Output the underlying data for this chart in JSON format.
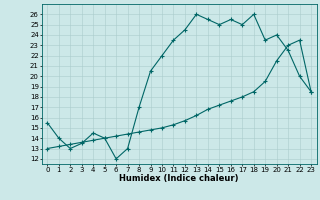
{
  "xlabel": "Humidex (Indice chaleur)",
  "bg_color": "#cce8e8",
  "grid_color": "#aacccc",
  "line_color": "#006666",
  "x_ticks": [
    0,
    1,
    2,
    3,
    4,
    5,
    6,
    7,
    8,
    9,
    10,
    11,
    12,
    13,
    14,
    15,
    16,
    17,
    18,
    19,
    20,
    21,
    22,
    23
  ],
  "y_ticks": [
    12,
    13,
    14,
    15,
    16,
    17,
    18,
    19,
    20,
    21,
    22,
    23,
    24,
    25,
    26
  ],
  "ylim": [
    11.5,
    27.0
  ],
  "xlim": [
    -0.5,
    23.5
  ],
  "series1": {
    "x": [
      0,
      1,
      2,
      3,
      4,
      5,
      6,
      7,
      8,
      9,
      10,
      11,
      12,
      13,
      14,
      15,
      16,
      17,
      18,
      19,
      20,
      21,
      22,
      23
    ],
    "y": [
      15.5,
      14.0,
      13.0,
      13.5,
      14.5,
      14.0,
      12.0,
      13.0,
      17.0,
      20.5,
      22.0,
      23.5,
      24.5,
      26.0,
      25.5,
      25.0,
      25.5,
      25.0,
      26.0,
      23.5,
      24.0,
      22.5,
      20.0,
      18.5
    ]
  },
  "series2": {
    "x": [
      0,
      1,
      2,
      3,
      4,
      5,
      6,
      7,
      8,
      9,
      10,
      11,
      12,
      13,
      14,
      15,
      16,
      17,
      18,
      19,
      20,
      21,
      22,
      23
    ],
    "y": [
      13.0,
      13.2,
      13.4,
      13.6,
      13.8,
      14.0,
      14.2,
      14.4,
      14.6,
      14.8,
      15.0,
      15.3,
      15.7,
      16.2,
      16.8,
      17.2,
      17.6,
      18.0,
      18.5,
      19.5,
      21.5,
      23.0,
      23.5,
      18.5
    ]
  },
  "tick_fontsize": 5.0,
  "xlabel_fontsize": 6.0,
  "linewidth": 0.8,
  "markersize": 2.5,
  "markeredgewidth": 0.8
}
